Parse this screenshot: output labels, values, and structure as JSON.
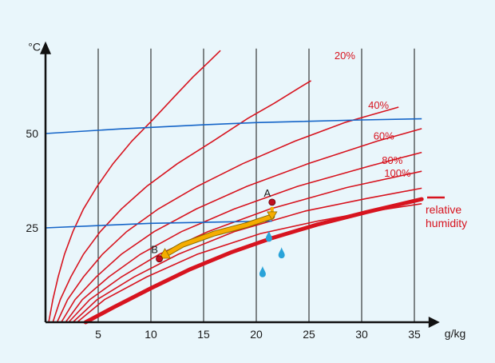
{
  "chart_data": {
    "type": "line",
    "title": "",
    "ylabel": "°C",
    "xlabel": "g/kg",
    "xlim": [
      0,
      36.5
    ],
    "ylim": [
      0,
      74
    ],
    "x_ticks": [
      5,
      10,
      15,
      20,
      25,
      30,
      35
    ],
    "y_ticks": [
      25,
      50
    ],
    "legend": {
      "label": "relative\nhumidity",
      "lines": [
        "relative",
        "humidity"
      ],
      "position": "right"
    },
    "colors": {
      "curve": "#d7141f",
      "isotherm": "#1565c8",
      "path": "#f5ad00",
      "drop": "#29a3d9",
      "axis": "#111111",
      "grid": "#111111"
    },
    "humidity_curves": [
      {
        "label": "",
        "points": [
          [
            0.3,
            0
          ],
          [
            0.7,
            6
          ],
          [
            1.2,
            12
          ],
          [
            1.8,
            18
          ],
          [
            2.6,
            24
          ],
          [
            3.6,
            30
          ],
          [
            4.9,
            36
          ],
          [
            6.4,
            42
          ],
          [
            8.2,
            48
          ],
          [
            10.3,
            54
          ],
          [
            12.3,
            60
          ],
          [
            14.0,
            65
          ],
          [
            15.5,
            69
          ],
          [
            16.6,
            72
          ]
        ]
      },
      {
        "label": "",
        "points": [
          [
            0.7,
            0
          ],
          [
            1.4,
            6
          ],
          [
            2.4,
            12
          ],
          [
            3.6,
            18
          ],
          [
            5.2,
            24
          ],
          [
            7.2,
            30
          ],
          [
            9.6,
            36
          ],
          [
            12.5,
            42
          ],
          [
            15.9,
            48
          ],
          [
            19.2,
            54
          ],
          [
            21.7,
            58
          ],
          [
            24.0,
            62
          ],
          [
            25.2,
            64
          ]
        ]
      },
      {
        "label": "",
        "points": [
          [
            1.1,
            0
          ],
          [
            2.1,
            6
          ],
          [
            3.6,
            12
          ],
          [
            5.4,
            18
          ],
          [
            7.7,
            24
          ],
          [
            10.7,
            30
          ],
          [
            14.4,
            36
          ],
          [
            18.7,
            42
          ],
          [
            23.7,
            48
          ],
          [
            28.5,
            53
          ],
          [
            31.0,
            55
          ],
          [
            33.5,
            57
          ]
        ]
      },
      {
        "label": "20%",
        "points": [
          [
            1.5,
            0
          ],
          [
            2.8,
            6
          ],
          [
            4.8,
            12
          ],
          [
            7.2,
            18
          ],
          [
            10.3,
            24
          ],
          [
            14.3,
            30
          ],
          [
            19.1,
            36
          ],
          [
            24.9,
            42
          ],
          [
            31.5,
            48
          ],
          [
            35.7,
            51.3
          ]
        ]
      },
      {
        "label": "",
        "points": [
          [
            1.9,
            0
          ],
          [
            3.5,
            6
          ],
          [
            6.0,
            12
          ],
          [
            9.0,
            18
          ],
          [
            12.9,
            24
          ],
          [
            17.9,
            30
          ],
          [
            23.9,
            36
          ],
          [
            30.9,
            41.5
          ],
          [
            35.7,
            45
          ]
        ]
      },
      {
        "label": "40%",
        "points": [
          [
            2.2,
            0
          ],
          [
            4.2,
            6
          ],
          [
            7.2,
            12
          ],
          [
            10.8,
            18
          ],
          [
            15.4,
            24
          ],
          [
            21.3,
            30
          ],
          [
            28.6,
            35.7
          ],
          [
            35.7,
            40
          ]
        ]
      },
      {
        "label": "60%",
        "points": [
          [
            2.6,
            0
          ],
          [
            4.9,
            6
          ],
          [
            8.4,
            12
          ],
          [
            12.6,
            18
          ],
          [
            17.9,
            24
          ],
          [
            24.7,
            29.5
          ],
          [
            30.5,
            32.8
          ],
          [
            35.7,
            35.5
          ]
        ]
      },
      {
        "label": "80%",
        "points": [
          [
            3.0,
            0
          ],
          [
            5.6,
            6
          ],
          [
            9.6,
            12
          ],
          [
            14.4,
            18
          ],
          [
            20.4,
            23.5
          ],
          [
            26.0,
            26.9
          ],
          [
            31.0,
            29.4
          ],
          [
            35.7,
            31.4
          ]
        ]
      }
    ],
    "saturation_curve": {
      "label": "100%",
      "points": [
        [
          3.8,
          0
        ],
        [
          6.5,
          4
        ],
        [
          10.0,
          9
        ],
        [
          13.7,
          14
        ],
        [
          17.6,
          18.5
        ],
        [
          21.5,
          22.3
        ],
        [
          25.8,
          25.9
        ],
        [
          30.5,
          29.2
        ],
        [
          35.7,
          32.6
        ]
      ]
    },
    "isotherms": [
      {
        "label": "50",
        "points": [
          [
            0,
            50
          ],
          [
            7,
            51.2
          ],
          [
            15,
            52.3
          ],
          [
            20,
            52.9
          ],
          [
            30,
            53.6
          ],
          [
            35.7,
            53.9
          ]
        ]
      },
      {
        "label": "25",
        "points": [
          [
            0,
            25
          ],
          [
            10,
            26.2
          ],
          [
            21.5,
            26.8
          ]
        ]
      }
    ],
    "cooling_path": {
      "points": [
        [
          21.5,
          28
        ],
        [
          19,
          25.7
        ],
        [
          16,
          23.5
        ],
        [
          13,
          20.5
        ],
        [
          11.2,
          17.6
        ]
      ]
    },
    "points": [
      {
        "label": "A",
        "x": 21.5,
        "y": 31.8
      },
      {
        "label": "B",
        "x": 10.8,
        "y": 16.8
      }
    ],
    "condensation_drops": [
      [
        21.2,
        22.8
      ],
      [
        22.4,
        18.4
      ],
      [
        20.6,
        13.4
      ]
    ],
    "rh_label_anchors": [
      {
        "label": "20%",
        "x": 28.4,
        "y": 69.7
      },
      {
        "label": "40%",
        "x": 31.6,
        "y": 56.6
      },
      {
        "label": "60%",
        "x": 32.1,
        "y": 48.4
      },
      {
        "label": "80%",
        "x": 32.9,
        "y": 41.9
      },
      {
        "label": "100%",
        "x": 33.4,
        "y": 38.6
      }
    ]
  }
}
